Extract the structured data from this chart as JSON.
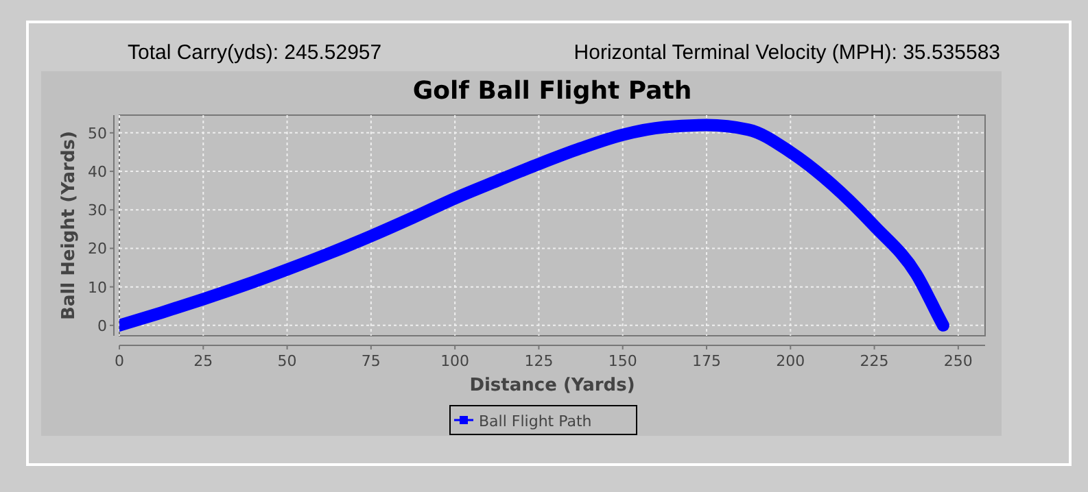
{
  "chart_data": {
    "type": "line",
    "title": "Golf Ball Flight Path",
    "xlabel": "Distance (Yards)",
    "ylabel": "Ball Height (Yards)",
    "annotations": [
      "Total Carry(yds): 245.52957",
      "Horizontal Terminal Velocity (MPH): 35.535583"
    ],
    "x": [
      0,
      12.5,
      25,
      37.5,
      50,
      62.5,
      75,
      87.5,
      100,
      112.5,
      125,
      137.5,
      150,
      162.5,
      175,
      187.5,
      200,
      212.5,
      225,
      237.5,
      245,
      245.5
    ],
    "series": [
      {
        "name": "Ball Flight Path",
        "color": "#0000ff",
        "values": [
          0,
          3.3,
          6.8,
          10.5,
          14.5,
          18.7,
          23.2,
          28,
          33,
          37.5,
          41.9,
          46,
          49.5,
          51.5,
          52,
          50.8,
          45,
          36.5,
          25.8,
          13.3,
          0.8,
          0
        ]
      }
    ],
    "xlim": [
      0,
      258
    ],
    "ylim": [
      -2.7,
      54.6
    ],
    "xticks": [
      0,
      25,
      50,
      75,
      100,
      125,
      150,
      175,
      200,
      225,
      250
    ],
    "yticks": [
      0,
      10,
      20,
      30,
      40,
      50
    ],
    "grid": true,
    "legend": "bottom",
    "marker": "square",
    "line_style": "solid"
  }
}
